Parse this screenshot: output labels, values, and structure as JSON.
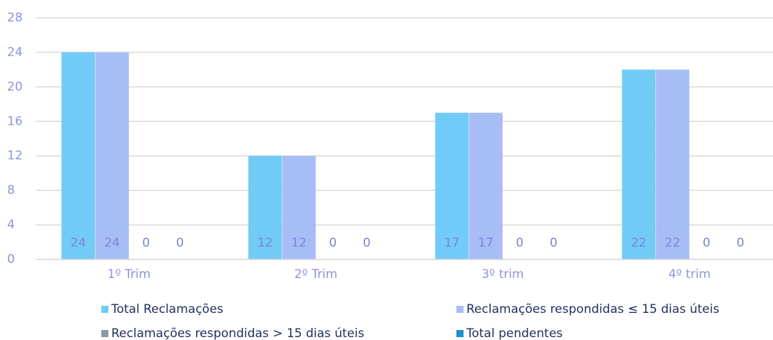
{
  "chart_data": {
    "type": "bar",
    "categories": [
      "1º Trim",
      "2º Trim",
      "3º trim",
      "4º trim"
    ],
    "series": [
      {
        "name": "Total Reclamações",
        "color": "#72cbf6",
        "values": [
          24,
          12,
          17,
          22
        ]
      },
      {
        "name": "Reclamações respondidas ≤ 15 dias úteis",
        "color": "#a7bdf6",
        "values": [
          24,
          12,
          17,
          22
        ]
      },
      {
        "name": "Reclamações respondidas > 15 dias úteis",
        "color": "#8c9aa6",
        "values": [
          0,
          0,
          0,
          0
        ]
      },
      {
        "name": "Total pendentes",
        "color": "#1b8fd0",
        "values": [
          0,
          0,
          0,
          0
        ]
      }
    ],
    "ylim": [
      0,
      28
    ],
    "yticks": [
      0,
      4,
      8,
      12,
      16,
      20,
      24,
      28
    ],
    "grid": true,
    "legend": "bottom"
  }
}
